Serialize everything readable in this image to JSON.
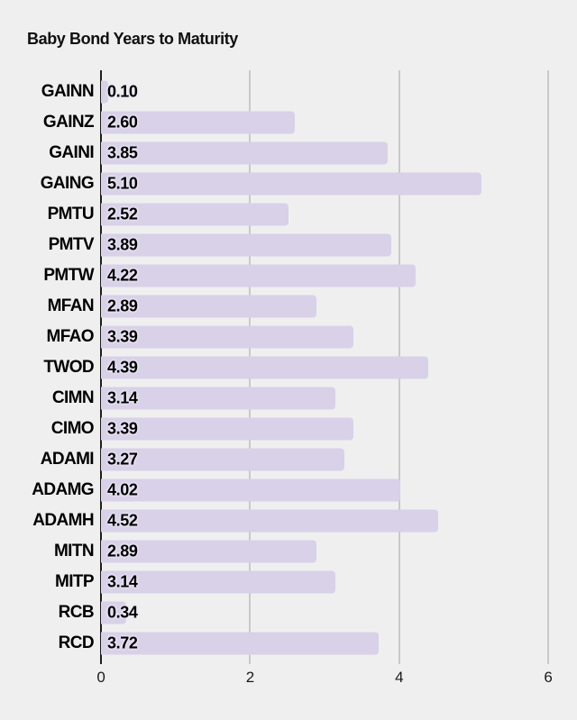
{
  "title": "Baby Bond Years to Maturity",
  "colors": {
    "background": "#efeff0",
    "bar": "#d8d1e8",
    "gridline": "#c9c9c9",
    "zero_line": "#1e1e1e",
    "label_text": "#000000",
    "value_halo": "#ece8f6"
  },
  "chart_data": {
    "type": "bar",
    "orientation": "horizontal",
    "title": "Baby Bond Years to Maturity",
    "categories": [
      "GAINN",
      "GAINZ",
      "GAINI",
      "GAING",
      "PMTU",
      "PMTV",
      "PMTW",
      "MFAN",
      "MFAO",
      "TWOD",
      "CIMN",
      "CIMO",
      "ADAMI",
      "ADAMG",
      "ADAMH",
      "MITN",
      "MITP",
      "RCB",
      "RCD"
    ],
    "values": [
      0.1,
      2.6,
      3.85,
      5.1,
      2.52,
      3.89,
      4.22,
      2.89,
      3.39,
      4.39,
      3.14,
      3.39,
      3.27,
      4.02,
      4.52,
      2.89,
      3.14,
      0.34,
      3.72
    ],
    "value_labels": [
      "0.10",
      "2.60",
      "3.85",
      "5.10",
      "2.52",
      "3.89",
      "4.22",
      "2.89",
      "3.39",
      "4.39",
      "3.14",
      "3.39",
      "3.27",
      "4.02",
      "4.52",
      "2.89",
      "3.14",
      "0.34",
      "3.72"
    ],
    "xlabel": "",
    "ylabel": "",
    "xlim": [
      0,
      6
    ],
    "x_ticks": [
      0,
      2,
      4,
      6
    ],
    "x_tick_labels": [
      "0",
      "2",
      "4",
      "6"
    ],
    "grid": true,
    "legend": false
  }
}
